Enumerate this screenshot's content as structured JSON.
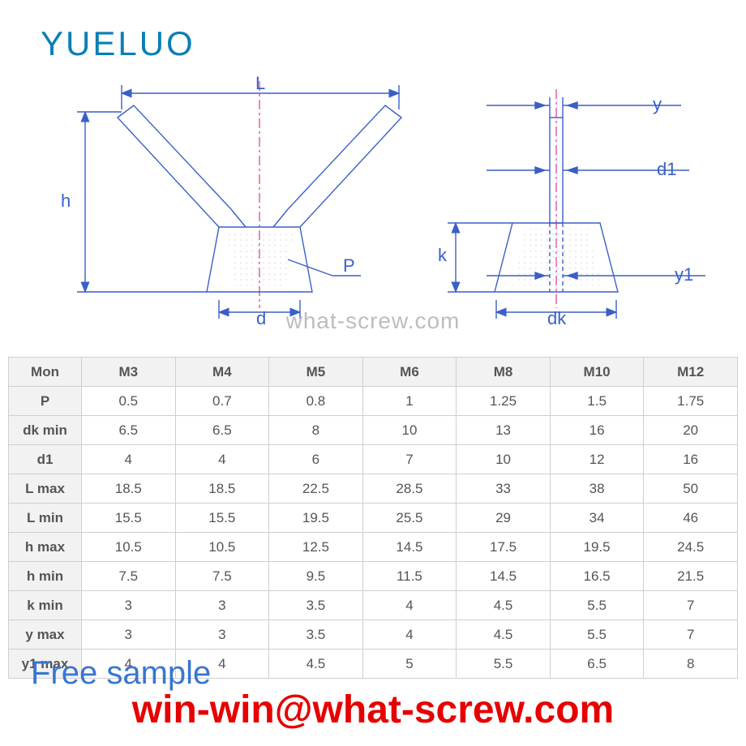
{
  "brand": {
    "logo_text": "YUELUO",
    "logo_color": "#0a7fb5"
  },
  "diagram": {
    "line_color": "#3a5fc8",
    "centerline_color": "#e055a0",
    "text_color": "#3a5fc8",
    "hatch_color": "#b8b8b8",
    "label_fontsize": 22,
    "labels": {
      "L": "L",
      "h": "h",
      "P": "P",
      "d": "d",
      "y": "y",
      "d1": "d1",
      "k": "k",
      "y1": "y1",
      "dk": "dk"
    }
  },
  "watermark": "what-screw.com",
  "table": {
    "header_bg": "#f2f2f2",
    "border_color": "#cfcfcf",
    "text_color": "#555555",
    "fontsize": 17,
    "columns": [
      "Mon",
      "M3",
      "M4",
      "M5",
      "M6",
      "M8",
      "M10",
      "M12"
    ],
    "rows": [
      {
        "label": "P",
        "values": [
          "0.5",
          "0.7",
          "0.8",
          "1",
          "1.25",
          "1.5",
          "1.75"
        ]
      },
      {
        "label": "dk min",
        "values": [
          "6.5",
          "6.5",
          "8",
          "10",
          "13",
          "16",
          "20"
        ]
      },
      {
        "label": "d1",
        "values": [
          "4",
          "4",
          "6",
          "7",
          "10",
          "12",
          "16"
        ]
      },
      {
        "label": "L max",
        "values": [
          "18.5",
          "18.5",
          "22.5",
          "28.5",
          "33",
          "38",
          "50"
        ]
      },
      {
        "label": "L min",
        "values": [
          "15.5",
          "15.5",
          "19.5",
          "25.5",
          "29",
          "34",
          "46"
        ]
      },
      {
        "label": "h max",
        "values": [
          "10.5",
          "10.5",
          "12.5",
          "14.5",
          "17.5",
          "19.5",
          "24.5"
        ]
      },
      {
        "label": "h min",
        "values": [
          "7.5",
          "7.5",
          "9.5",
          "11.5",
          "14.5",
          "16.5",
          "21.5"
        ]
      },
      {
        "label": "k min",
        "values": [
          "3",
          "3",
          "3.5",
          "4",
          "4.5",
          "5.5",
          "7"
        ]
      },
      {
        "label": "y max",
        "values": [
          "3",
          "3",
          "3.5",
          "4",
          "4.5",
          "5.5",
          "7"
        ]
      },
      {
        "label": "y1 max",
        "values": [
          "4",
          "4",
          "4.5",
          "5",
          "5.5",
          "6.5",
          "8"
        ]
      }
    ]
  },
  "overlay": {
    "free_sample": "Free sample",
    "free_sample_color": "#3776d1",
    "email": "win-win@what-screw.com",
    "email_color": "#e60000"
  }
}
